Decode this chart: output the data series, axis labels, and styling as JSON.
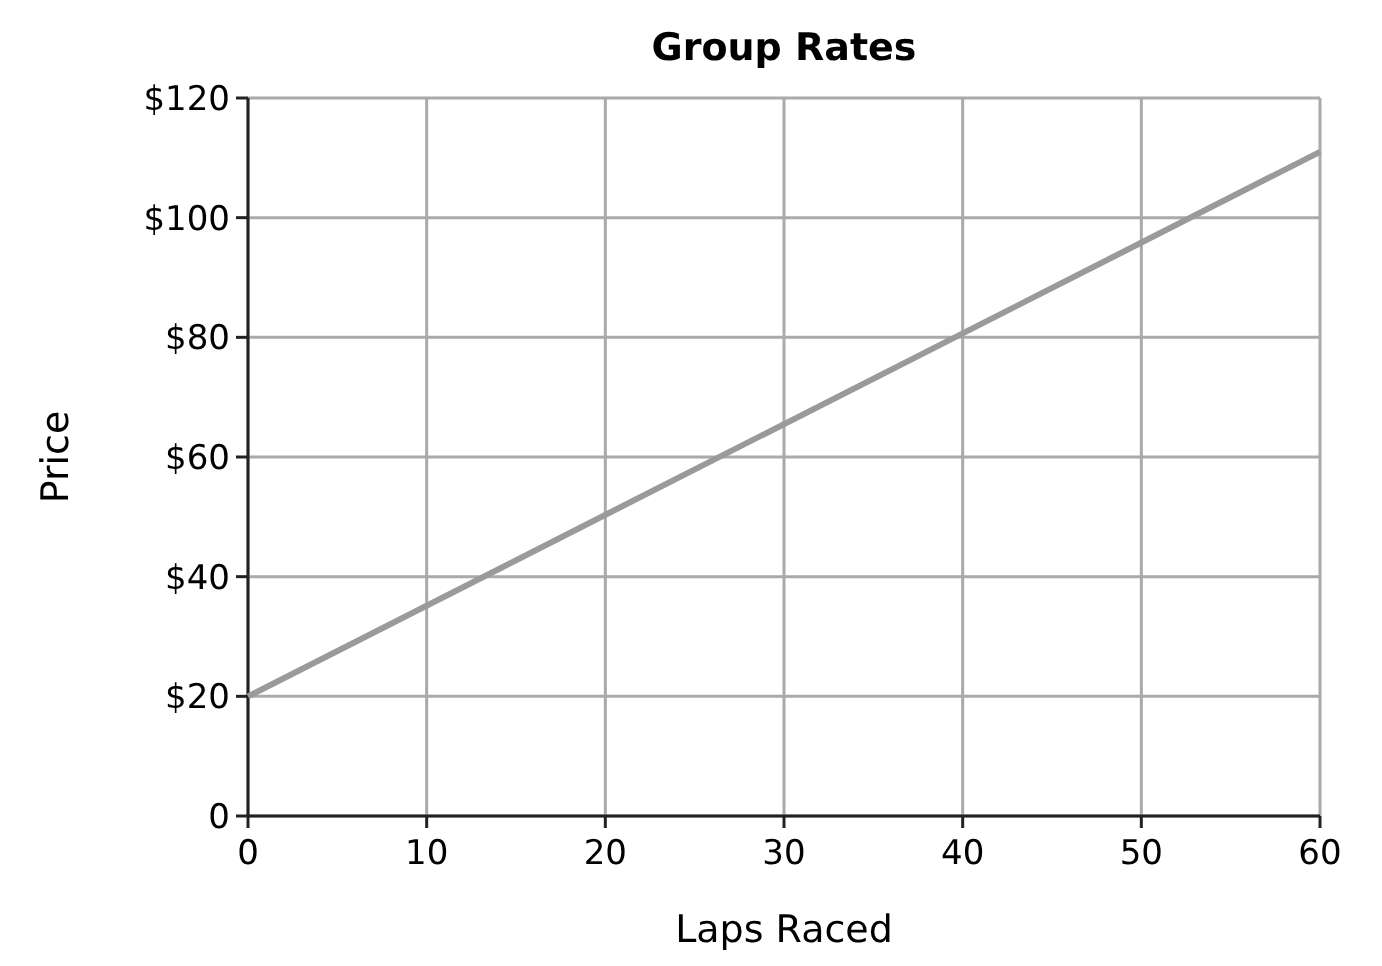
{
  "chart_data": {
    "type": "line",
    "title": "Group Rates",
    "xlabel": "Laps Raced",
    "ylabel": "Price",
    "x": [
      0,
      60
    ],
    "series": [
      {
        "color": "#9a9a9a",
        "values": [
          20,
          111
        ]
      }
    ],
    "xlim": [
      0,
      60
    ],
    "xticks": [
      0,
      10,
      20,
      30,
      40,
      50,
      60
    ],
    "ylim": [
      0,
      120
    ],
    "yticks": [
      0,
      {
        "value": 20,
        "label": "$20"
      },
      {
        "value": 40,
        "label": "$40"
      },
      {
        "value": 60,
        "label": "$60"
      },
      {
        "value": 80,
        "label": "$80"
      },
      {
        "value": 100,
        "label": "$100"
      },
      {
        "value": 120,
        "label": "$120"
      }
    ],
    "grid": true,
    "marker": "none",
    "line_style": "solid"
  }
}
